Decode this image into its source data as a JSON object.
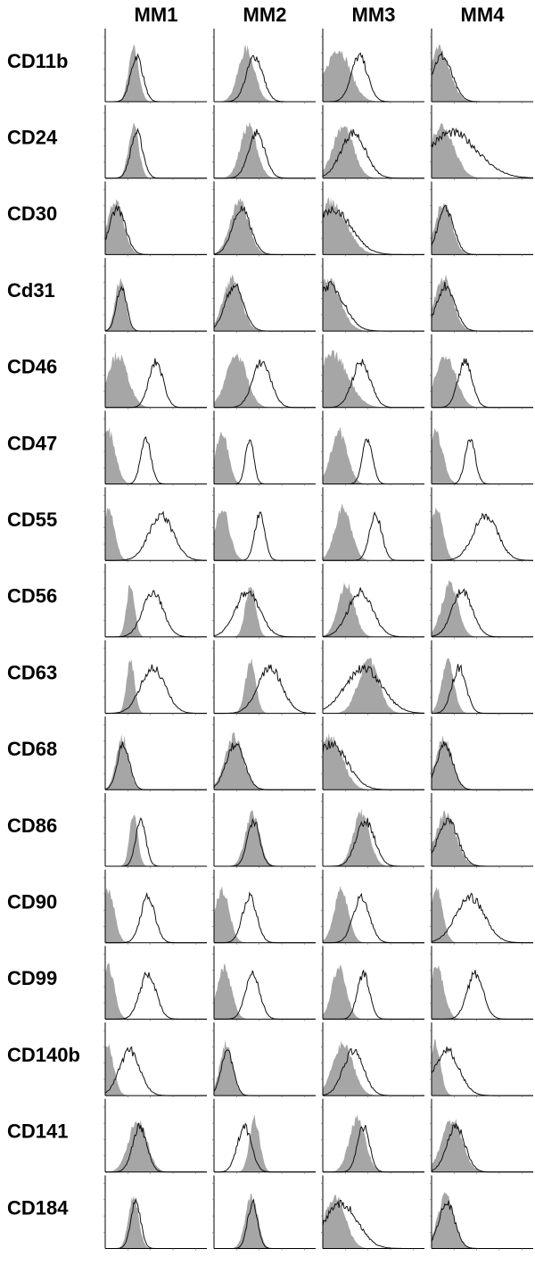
{
  "columns": [
    "MM1",
    "MM2",
    "MM3",
    "MM4"
  ],
  "rows": [
    "CD11b",
    "CD24",
    "CD30",
    "Cd31",
    "CD46",
    "CD47",
    "CD55",
    "CD56",
    "CD63",
    "CD68",
    "CD86",
    "CD90",
    "CD99",
    "CD140b",
    "CD141",
    "CD184"
  ]
}
